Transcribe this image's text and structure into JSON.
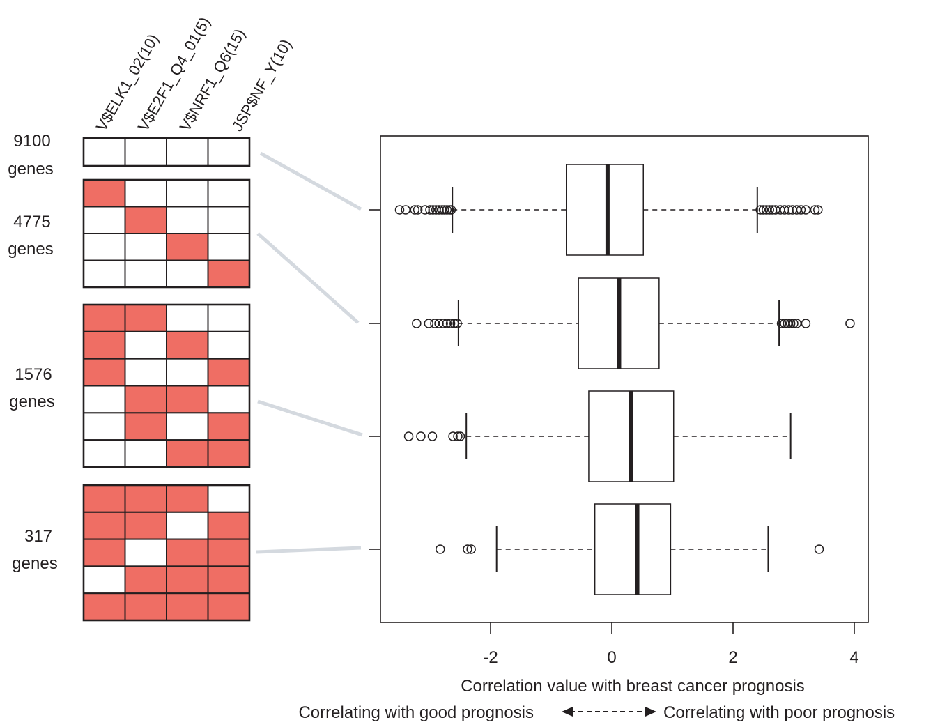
{
  "colors": {
    "on": "#ef6e64",
    "off": "#ffffff",
    "grid": "#231f20",
    "connector": "#d4d9df",
    "ink": "#231f20"
  },
  "motif_headers": [
    "V$ELK1_02(10)",
    "V$E2F1_Q4_01(5)",
    "V$NRF1_Q6(15)",
    "JSP$NF_Y(10)"
  ],
  "groups": [
    {
      "count_label": "9100",
      "unit_label": "genes",
      "matrix": [
        [
          0,
          0,
          0,
          0
        ]
      ]
    },
    {
      "count_label": "4775",
      "unit_label": "genes",
      "matrix": [
        [
          1,
          0,
          0,
          0
        ],
        [
          0,
          1,
          0,
          0
        ],
        [
          0,
          0,
          1,
          0
        ],
        [
          0,
          0,
          0,
          1
        ]
      ]
    },
    {
      "count_label": "1576",
      "unit_label": "genes",
      "matrix": [
        [
          1,
          1,
          0,
          0
        ],
        [
          1,
          0,
          1,
          0
        ],
        [
          1,
          0,
          0,
          1
        ],
        [
          0,
          1,
          1,
          0
        ],
        [
          0,
          1,
          0,
          1
        ],
        [
          0,
          0,
          1,
          1
        ]
      ]
    },
    {
      "count_label": "317",
      "unit_label": "genes",
      "matrix": [
        [
          1,
          1,
          1,
          0
        ],
        [
          1,
          1,
          0,
          1
        ],
        [
          1,
          0,
          1,
          1
        ],
        [
          0,
          1,
          1,
          1
        ],
        [
          1,
          1,
          1,
          1
        ]
      ]
    }
  ],
  "chart_data": {
    "type": "boxplot",
    "orientation": "horizontal",
    "xlabel": "Correlation value with breast cancer prognosis",
    "x_ticks": [
      -2,
      0,
      2,
      4
    ],
    "x_tick_labels": [
      "-2",
      "0",
      "2",
      "4"
    ],
    "xlim": [
      -3.8,
      4.25
    ],
    "series": [
      {
        "group": "9100 genes",
        "whisker_low": -2.63,
        "q1": -0.75,
        "median": -0.07,
        "q3": 0.52,
        "whisker_high": 2.4,
        "outliers": [
          -3.5,
          -3.4,
          -3.25,
          -3.2,
          -3.08,
          -3.0,
          -2.95,
          -2.9,
          -2.85,
          -2.8,
          -2.76,
          -2.72,
          -2.68,
          -2.65,
          2.45,
          2.5,
          2.55,
          2.6,
          2.65,
          2.7,
          2.78,
          2.85,
          2.92,
          2.98,
          3.05,
          3.12,
          3.2,
          3.35,
          3.4
        ]
      },
      {
        "group": "4775 genes",
        "whisker_low": -2.53,
        "q1": -0.55,
        "median": 0.12,
        "q3": 0.78,
        "whisker_high": 2.76,
        "outliers": [
          -3.22,
          -3.02,
          -2.92,
          -2.85,
          -2.78,
          -2.72,
          -2.66,
          -2.6,
          -2.55,
          2.8,
          2.85,
          2.9,
          2.95,
          3.0,
          3.05,
          3.2,
          3.93
        ]
      },
      {
        "group": "1576 genes",
        "whisker_low": -2.4,
        "q1": -0.38,
        "median": 0.32,
        "q3": 1.02,
        "whisker_high": 2.95,
        "outliers": [
          -3.35,
          -3.15,
          -2.96,
          -2.62,
          -2.54,
          -2.5
        ]
      },
      {
        "group": "317 genes",
        "whisker_low": -1.9,
        "q1": -0.28,
        "median": 0.42,
        "q3": 0.97,
        "whisker_high": 2.58,
        "outliers": [
          -2.83,
          -2.38,
          -2.32,
          3.42
        ]
      }
    ],
    "direction_labels": {
      "left": "Correlating with good prognosis",
      "right": "Correlating with poor prognosis"
    }
  }
}
